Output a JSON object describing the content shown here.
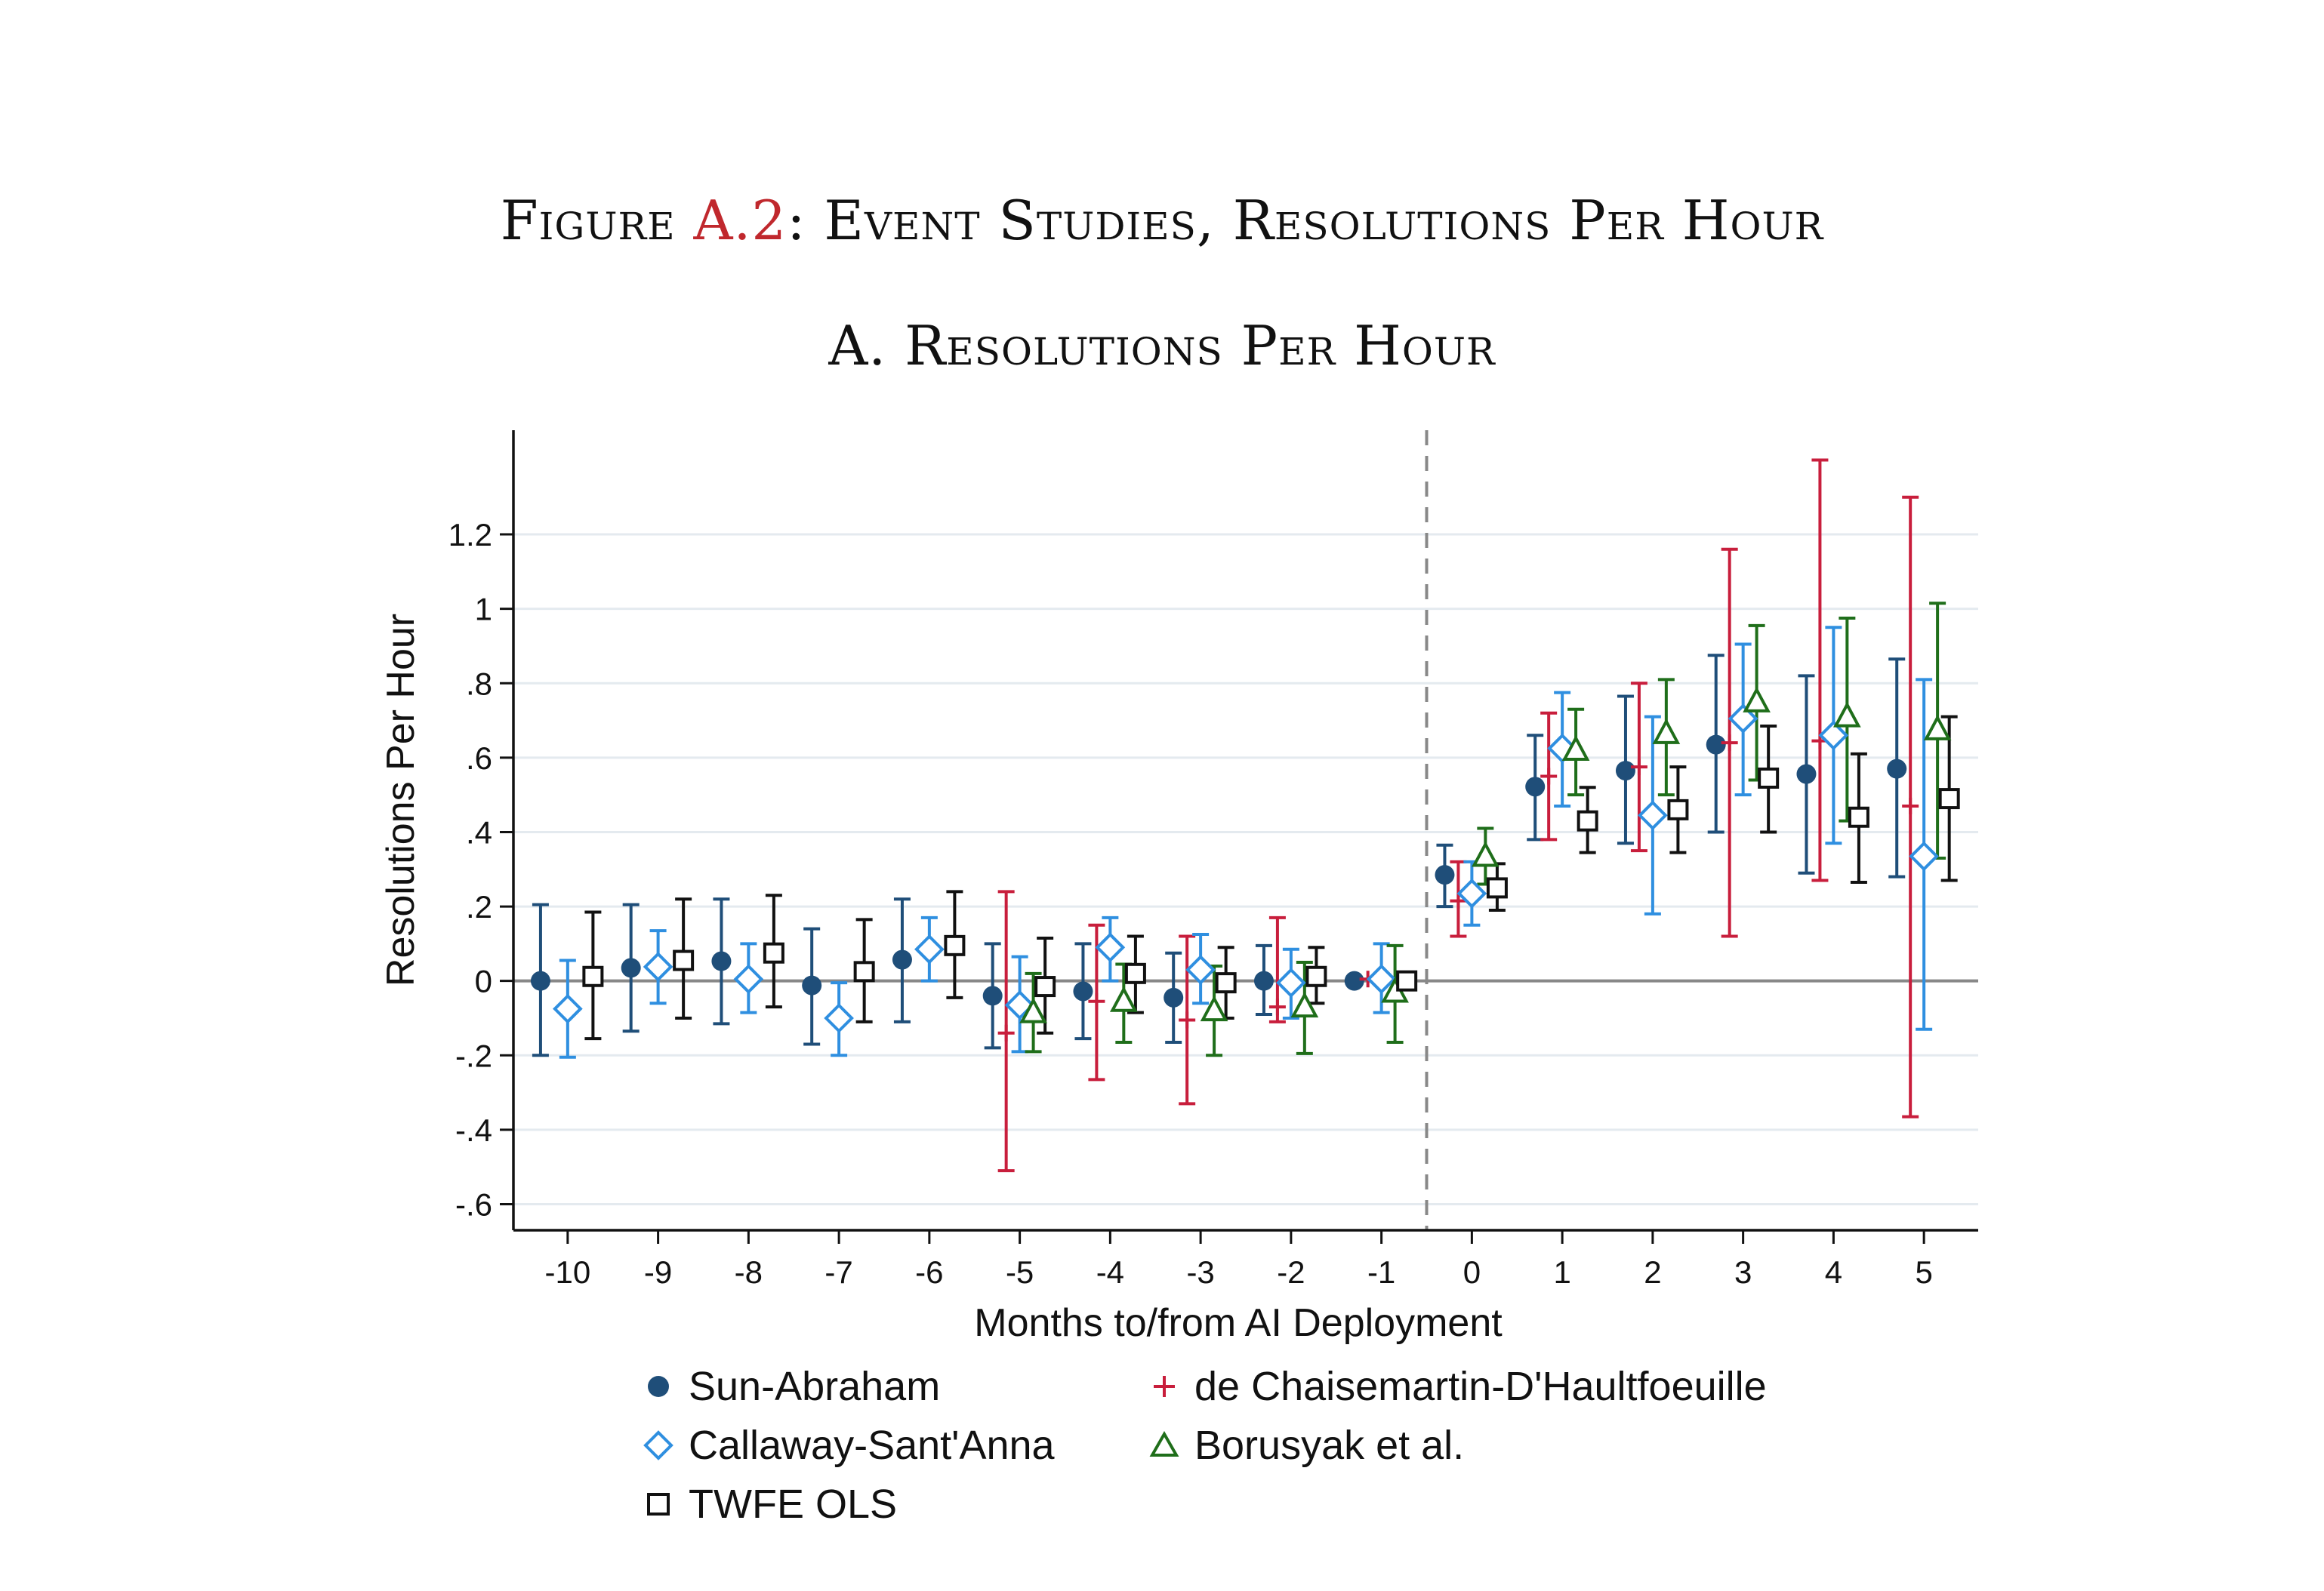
{
  "figure": {
    "title_prefix": "Figure",
    "title_ref": "A.2",
    "title_rest": ": Event Studies, Resolutions Per Hour",
    "panel_title": "A. Resolutions Per Hour"
  },
  "colors": {
    "sun_abraham": "#1f4e79",
    "callaway": "#2f8fe0",
    "dechaisemartin": "#c81e3c",
    "borusyak": "#1f6e1a",
    "twfe": "#111111",
    "reference_line": "#888888",
    "grid": "#e4eaef"
  },
  "legend": {
    "items": [
      {
        "label": "Sun-Abraham",
        "marker": "filled-circle",
        "color": "#1f4e79"
      },
      {
        "label": "de Chaisemartin-D'Haultfoeuille",
        "marker": "plus",
        "color": "#c81e3c"
      },
      {
        "label": "Callaway-Sant'Anna",
        "marker": "hollow-diamond",
        "color": "#2f8fe0"
      },
      {
        "label": "Borusyak et al.",
        "marker": "hollow-triangle",
        "color": "#1f6e1a"
      },
      {
        "label": "TWFE OLS",
        "marker": "hollow-square",
        "color": "#111111"
      }
    ]
  },
  "chart_data": {
    "type": "scatter",
    "subtype": "event-study coefficient plot with 95% CI error bars",
    "xlabel": "Months to/from AI Deployment",
    "ylabel": "Resolutions Per Hour",
    "categories": [
      -10,
      -9,
      -8,
      -7,
      -6,
      -5,
      -4,
      -3,
      -2,
      -1,
      0,
      1,
      2,
      3,
      4,
      5
    ],
    "x_tick_labels": [
      "-10",
      "-9",
      "-8",
      "-7",
      "-6",
      "-5",
      "-4",
      "-3",
      "-2",
      "-1",
      "0",
      "1",
      "2",
      "3",
      "4",
      "5"
    ],
    "y_ticks": [
      -0.6,
      -0.4,
      -0.2,
      0,
      0.2,
      0.4,
      0.6,
      0.8,
      1,
      1.2
    ],
    "y_tick_labels": [
      "-.6",
      "-.4",
      "-.2",
      "0",
      ".2",
      ".4",
      ".6",
      ".8",
      "1",
      "1.2"
    ],
    "ylim": [
      -0.67,
      1.48
    ],
    "xlim": [
      -10.6,
      5.6
    ],
    "grid": "horizontal",
    "zero_line": true,
    "deployment_line_x": -0.5,
    "legend_position": "bottom",
    "series": [
      {
        "name": "Sun-Abraham",
        "key": "sa",
        "marker": "filled-circle",
        "x": [
          -10,
          -9,
          -8,
          -7,
          -6,
          -5,
          -4,
          -3,
          -2,
          -1,
          0,
          1,
          2,
          3,
          4,
          5
        ],
        "y": [
          0.0,
          0.035,
          0.053,
          -0.012,
          0.057,
          -0.04,
          -0.028,
          -0.045,
          0.0,
          0.0,
          0.285,
          0.522,
          0.565,
          0.635,
          0.556,
          0.57
        ],
        "lo": [
          -0.2,
          -0.135,
          -0.115,
          -0.17,
          -0.11,
          -0.18,
          -0.155,
          -0.165,
          -0.09,
          null,
          0.2,
          0.38,
          0.37,
          0.4,
          0.29,
          0.28
        ],
        "hi": [
          0.205,
          0.205,
          0.22,
          0.14,
          0.22,
          0.1,
          0.1,
          0.075,
          0.095,
          null,
          0.365,
          0.66,
          0.765,
          0.875,
          0.82,
          0.865
        ]
      },
      {
        "name": "de Chaisemartin-D'Haultfoeuille",
        "key": "dc",
        "marker": "plus",
        "x": [
          -5,
          -4,
          -3,
          -2,
          -1,
          0,
          1,
          2,
          3,
          4,
          5
        ],
        "y": [
          -0.14,
          -0.055,
          -0.105,
          -0.07,
          0.005,
          0.215,
          0.55,
          0.575,
          0.64,
          0.645,
          0.47
        ],
        "lo": [
          -0.51,
          -0.265,
          -0.33,
          -0.11,
          null,
          0.12,
          0.38,
          0.35,
          0.12,
          0.27,
          -0.365
        ],
        "hi": [
          0.24,
          0.15,
          0.12,
          0.17,
          null,
          0.32,
          0.72,
          0.8,
          1.16,
          1.4,
          1.3
        ]
      },
      {
        "name": "Callaway-Sant'Anna",
        "key": "cs",
        "marker": "hollow-diamond",
        "x": [
          -10,
          -9,
          -8,
          -7,
          -6,
          -5,
          -4,
          -3,
          -2,
          -1,
          0,
          1,
          2,
          3,
          4,
          5
        ],
        "y": [
          -0.075,
          0.038,
          0.005,
          -0.1,
          0.085,
          -0.065,
          0.09,
          0.03,
          -0.005,
          0.005,
          0.235,
          0.625,
          0.445,
          0.705,
          0.66,
          0.335
        ],
        "lo": [
          -0.205,
          -0.06,
          -0.085,
          -0.2,
          0.0,
          -0.19,
          -0.0,
          -0.06,
          -0.1,
          -0.085,
          0.15,
          0.47,
          0.18,
          0.5,
          0.37,
          -0.13
        ],
        "hi": [
          0.055,
          0.135,
          0.1,
          -0.005,
          0.17,
          0.065,
          0.17,
          0.125,
          0.085,
          0.1,
          0.32,
          0.775,
          0.71,
          0.905,
          0.95,
          0.81
        ]
      },
      {
        "name": "Borusyak et al.",
        "key": "bo",
        "marker": "hollow-triangle",
        "x": [
          -5,
          -4,
          -3,
          -2,
          -1,
          0,
          1,
          2,
          3,
          4,
          5
        ],
        "y": [
          -0.085,
          -0.055,
          -0.08,
          -0.07,
          -0.03,
          0.335,
          0.62,
          0.665,
          0.75,
          0.71,
          0.675
        ],
        "lo": [
          -0.19,
          -0.165,
          -0.2,
          -0.195,
          -0.165,
          0.26,
          0.5,
          0.5,
          0.54,
          0.43,
          0.33
        ],
        "hi": [
          0.02,
          0.045,
          0.04,
          0.05,
          0.095,
          0.41,
          0.73,
          0.81,
          0.955,
          0.975,
          1.015
        ]
      },
      {
        "name": "TWFE OLS",
        "key": "tw",
        "marker": "hollow-square",
        "x": [
          -10,
          -9,
          -8,
          -7,
          -6,
          -5,
          -4,
          -3,
          -2,
          -1,
          0,
          1,
          2,
          3,
          4,
          5
        ],
        "y": [
          0.012,
          0.055,
          0.075,
          0.025,
          0.095,
          -0.015,
          0.02,
          -0.005,
          0.012,
          0.0,
          0.25,
          0.43,
          0.46,
          0.545,
          0.44,
          0.49
        ],
        "lo": [
          -0.155,
          -0.1,
          -0.07,
          -0.11,
          -0.045,
          -0.14,
          -0.085,
          -0.1,
          -0.06,
          null,
          0.19,
          0.345,
          0.345,
          0.4,
          0.265,
          0.27
        ],
        "hi": [
          0.185,
          0.22,
          0.23,
          0.165,
          0.24,
          0.115,
          0.12,
          0.09,
          0.09,
          null,
          0.315,
          0.52,
          0.575,
          0.685,
          0.61,
          0.71
        ]
      }
    ]
  }
}
